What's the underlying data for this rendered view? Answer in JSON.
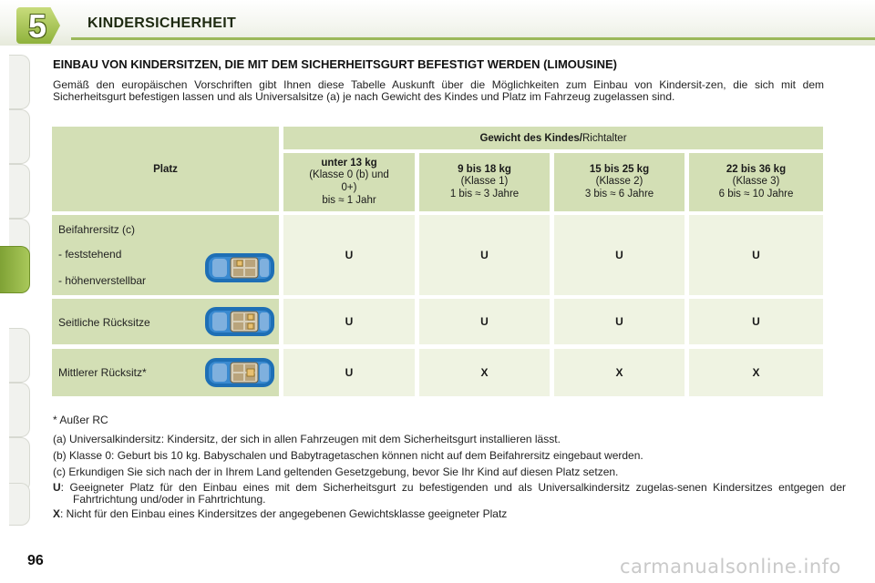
{
  "chapter": {
    "number": "5",
    "title": "KINDERSICHERHEIT"
  },
  "section": {
    "title": "EINBAU VON KINDERSITZEN, DIE MIT DEM SICHERHEITSGURT BEFESTIGT WERDEN (LIMOUSINE)",
    "intro": "Gemäß den europäischen Vorschriften gibt Ihnen diese Tabelle Auskunft über die Möglichkeiten zum Einbau von Kindersit-zen, die sich mit dem Sicherheitsgurt befestigen lassen und als Universalsitze (a) je nach Gewicht des Kindes und Platz im Fahrzeug zugelassen sind."
  },
  "table": {
    "place_header": "Platz",
    "group_header_bold": "Gewicht des Kindes/",
    "group_header_normal": "Richtalter",
    "columns": [
      {
        "weight": "unter 13 kg",
        "line2": "(Klasse 0 (b) und",
        "line3": "0+)",
        "line4": "bis ≈ 1 Jahr"
      },
      {
        "weight": "9 bis 18 kg",
        "line2": "(Klasse 1)",
        "line3": "1 bis ≈ 3 Jahre",
        "line4": ""
      },
      {
        "weight": "15 bis 25 kg",
        "line2": "(Klasse 2)",
        "line3": "3 bis ≈ 6 Jahre",
        "line4": ""
      },
      {
        "weight": "22 bis 36 kg",
        "line2": "(Klasse 3)",
        "line3": "6 bis ≈ 10 Jahre",
        "line4": ""
      }
    ],
    "rows": [
      {
        "label": "Beifahrersitz (c)",
        "sub1": "-    feststehend",
        "sub2": "-    höhenverstellbar",
        "values": [
          "U",
          "U",
          "U",
          "U"
        ]
      },
      {
        "label": "Seitliche Rücksitze",
        "values": [
          "U",
          "U",
          "U",
          "U"
        ]
      },
      {
        "label": "Mittlerer Rücksitz*",
        "values": [
          "U",
          "X",
          "X",
          "X"
        ]
      }
    ],
    "car_icon": "car-top-view-icon"
  },
  "notes": {
    "footnote": "* Außer RC",
    "a": "(a) Universalkindersitz: Kindersitz, der sich in allen Fahrzeugen mit dem Sicherheitsgurt installieren lässt.",
    "b": "(b) Klasse 0: Geburt bis 10 kg. Babyschalen und Babytragetaschen können nicht auf dem Beifahrersitz eingebaut werden.",
    "c": "(c) Erkundigen Sie sich nach der in Ihrem Land geltenden Gesetzgebung, bevor Sie Ihr Kind auf diesen Platz setzen.",
    "u_key": "U",
    "u_text": ":  Geeigneter Platz für den Einbau eines mit dem Sicherheitsgurt zu befestigenden und als Universalkindersitz zugelas-senen Kindersitzes entgegen der Fahrtrichtung und/oder in Fahrtrichtung.",
    "x_key": "X",
    "x_text": ":  Nicht für den Einbau eines Kindersitzes der angegebenen Gewichtsklasse geeigneter Platz"
  },
  "page_number": "96",
  "watermark": "carmanualsonline.info",
  "colors": {
    "accent_green": "#9bb85a",
    "header_cell": "#d3dfb5",
    "body_cell": "#eff3e2",
    "car_blue": "#1e6fb5"
  }
}
